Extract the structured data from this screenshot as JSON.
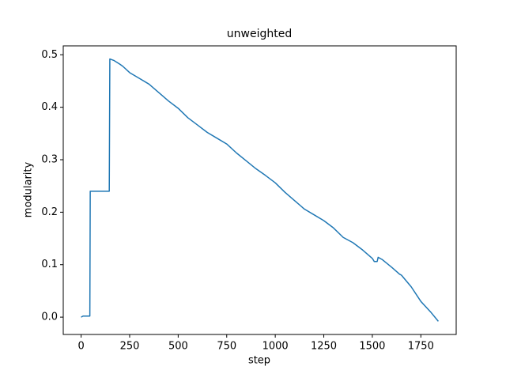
{
  "chart_data": {
    "type": "line",
    "title": "unweighted",
    "x_label": "step",
    "y_label": "modularity",
    "x": [
      0,
      10,
      45,
      47,
      145,
      148,
      170,
      200,
      215,
      250,
      300,
      350,
      400,
      450,
      500,
      550,
      600,
      650,
      700,
      750,
      800,
      850,
      900,
      950,
      1000,
      1050,
      1100,
      1150,
      1200,
      1250,
      1300,
      1350,
      1400,
      1450,
      1500,
      1510,
      1525,
      1530,
      1550,
      1600,
      1640,
      1650,
      1700,
      1750,
      1800,
      1840
    ],
    "series": [
      {
        "name": "modularity",
        "color": "#1f77b4",
        "values": [
          0,
          0.002,
          0.002,
          0.24,
          0.24,
          0.492,
          0.489,
          0.482,
          0.478,
          0.466,
          0.455,
          0.444,
          0.428,
          0.412,
          0.398,
          0.38,
          0.366,
          0.352,
          0.341,
          0.33,
          0.313,
          0.298,
          0.283,
          0.27,
          0.256,
          0.238,
          0.222,
          0.206,
          0.195,
          0.184,
          0.17,
          0.152,
          0.142,
          0.128,
          0.112,
          0.106,
          0.106,
          0.114,
          0.11,
          0.095,
          0.082,
          0.08,
          0.058,
          0.03,
          0.01,
          -0.008
        ]
      }
    ],
    "xlim": [
      -92,
      1932
    ],
    "ylim": [
      -0.033,
      0.517
    ],
    "xticks": [
      0,
      250,
      500,
      750,
      1000,
      1250,
      1500,
      1750
    ],
    "yticks": [
      {
        "value": 0,
        "label": "0.0"
      },
      0.1,
      0.2,
      0.3,
      0.4,
      0.5
    ]
  }
}
